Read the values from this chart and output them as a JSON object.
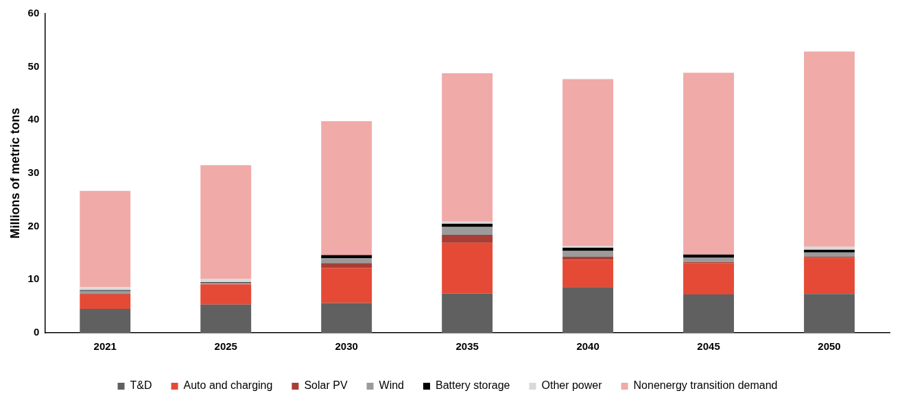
{
  "chart_data": {
    "type": "bar",
    "stacked": true,
    "ylabel": "Millions of metric tons",
    "categories": [
      "2021",
      "2025",
      "2030",
      "2035",
      "2040",
      "2045",
      "2050"
    ],
    "series": [
      {
        "name": "T&D",
        "color": "#606060",
        "values": [
          4.5,
          5.3,
          5.6,
          7.4,
          8.6,
          7.2,
          7.3
        ]
      },
      {
        "name": "Auto and charging",
        "color": "#e44a35",
        "values": [
          2.7,
          3.8,
          6.6,
          9.5,
          5.1,
          5.9,
          6.8
        ]
      },
      {
        "name": "Solar PV",
        "color": "#a83e35",
        "values": [
          0.1,
          null,
          0.9,
          1.5,
          0.6,
          0.2,
          0.2
        ]
      },
      {
        "name": "Wind",
        "color": "#9b9b9b",
        "values": [
          0.6,
          0.3,
          0.9,
          1.5,
          1.1,
          0.8,
          0.8
        ]
      },
      {
        "name": "Battery storage",
        "color": "#000000",
        "values": [
          0.1,
          0.1,
          0.6,
          0.6,
          0.6,
          0.6,
          0.5
        ]
      },
      {
        "name": "Other power",
        "color": "#d9d9d9",
        "values": [
          0.6,
          0.6,
          null,
          0.4,
          0.3,
          null,
          0.6
        ]
      },
      {
        "name": "Nonenergy transition demand",
        "color": "#f0aaa8",
        "values": [
          18.1,
          21.4,
          25.2,
          27.9,
          31.4,
          34.2,
          36.7
        ]
      }
    ],
    "ylim": [
      0,
      60
    ],
    "yticks": [
      0,
      10,
      20,
      30,
      40,
      50,
      60
    ],
    "grid": false,
    "legend": "bottom"
  }
}
